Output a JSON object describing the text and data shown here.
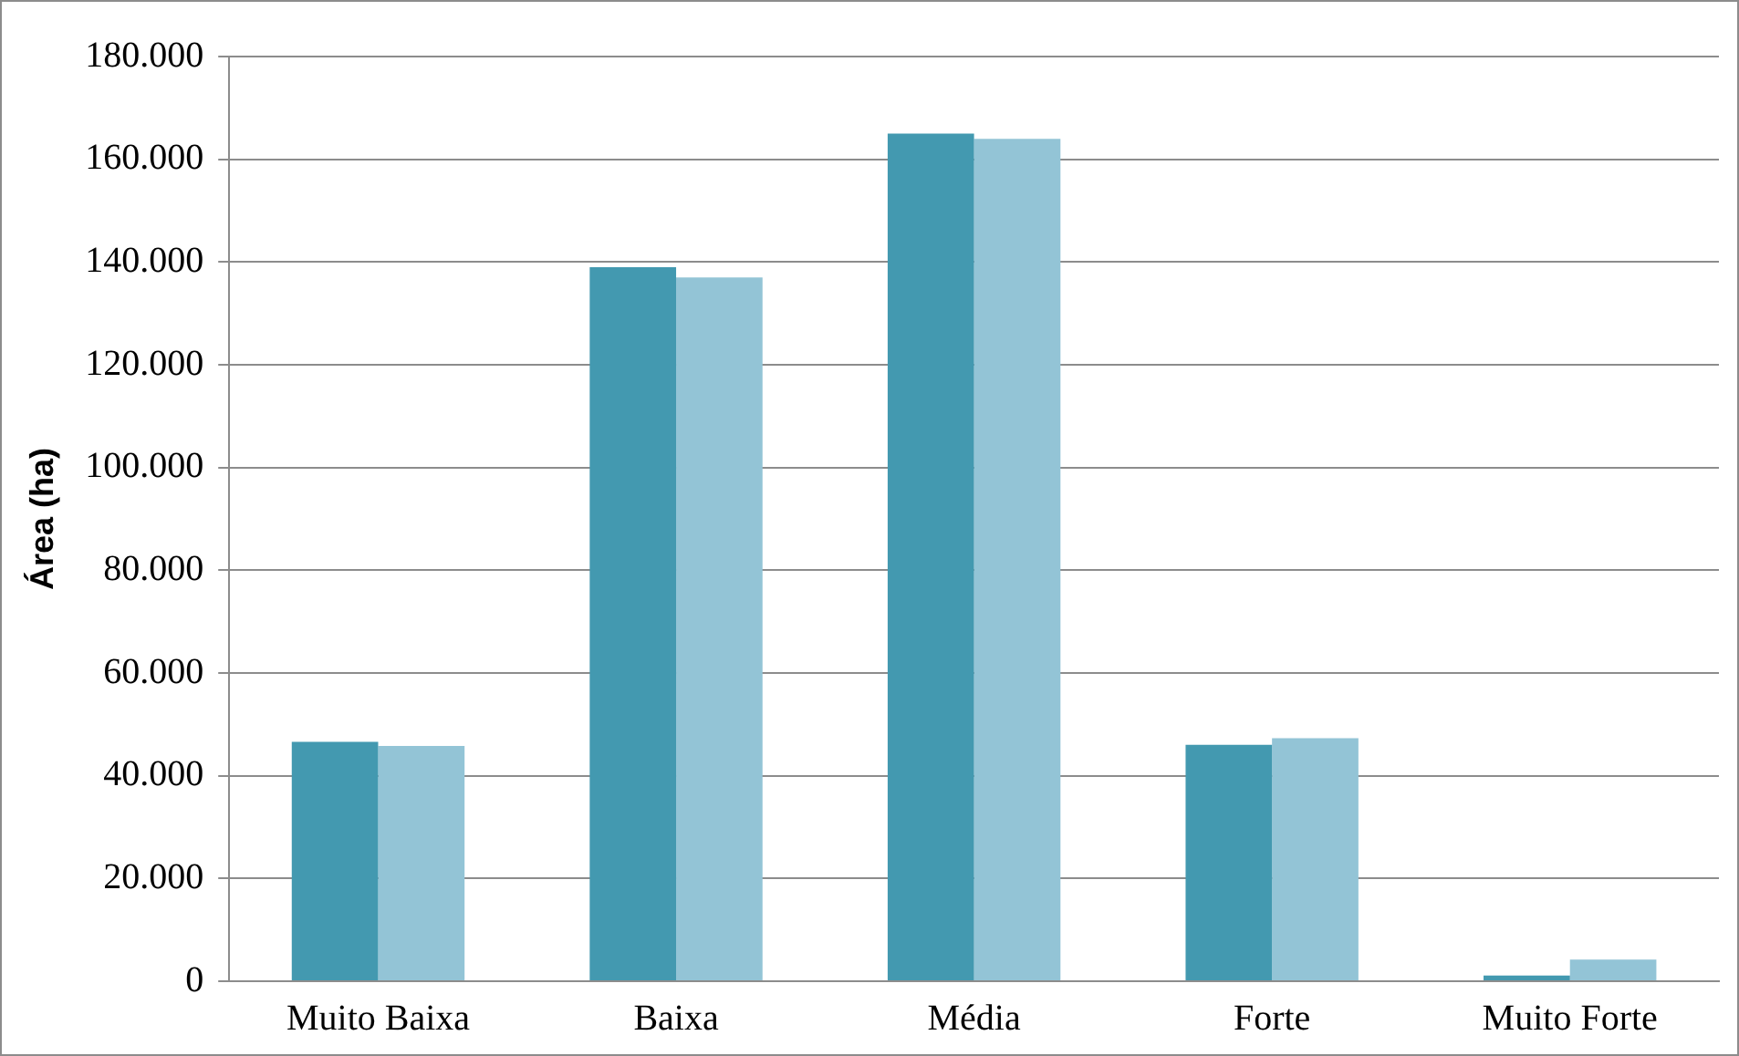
{
  "chart_data": {
    "type": "bar",
    "ylabel": "Área (ha)",
    "categories": [
      "Muito Baixa",
      "Baixa",
      "Média",
      "Forte",
      "Muito Forte"
    ],
    "series": [
      {
        "color": "#4399b0",
        "values": [
          46600,
          139000,
          165000,
          46000,
          1100
        ]
      },
      {
        "color": "#93c4d6",
        "values": [
          45800,
          137000,
          164000,
          47300,
          4200
        ]
      }
    ],
    "ylim": [
      0,
      180000
    ],
    "yticks": [
      0,
      {
        "value": 20000,
        "label": "20.000"
      },
      {
        "value": 40000,
        "label": "40.000"
      },
      {
        "value": 60000,
        "label": "60.000"
      },
      {
        "value": 80000,
        "label": "80.000"
      },
      {
        "value": 100000,
        "label": "100.000"
      },
      {
        "value": 120000,
        "label": "120.000"
      },
      {
        "value": 140000,
        "label": "140.000"
      },
      {
        "value": 160000,
        "label": "160.000"
      },
      {
        "value": 180000,
        "label": "180.000"
      }
    ],
    "grid": "y",
    "legend": false
  }
}
